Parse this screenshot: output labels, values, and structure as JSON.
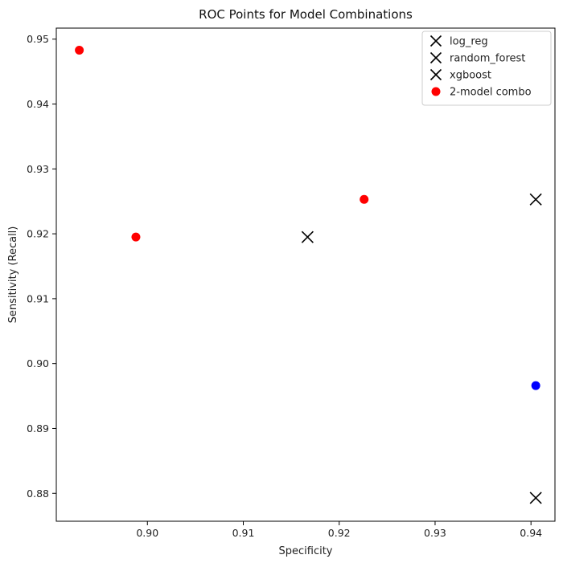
{
  "chart_data": {
    "type": "scatter",
    "title": "ROC Points for Model Combinations",
    "xlabel": "Specificity",
    "ylabel": "Sensitivity (Recall)",
    "xlim": [
      0.8905,
      0.9425
    ],
    "ylim": [
      0.8757,
      0.9517
    ],
    "xticks": [
      0.9,
      0.91,
      0.92,
      0.93,
      0.94
    ],
    "xtick_labels": [
      "0.90",
      "0.91",
      "0.92",
      "0.93",
      "0.94"
    ],
    "yticks": [
      0.88,
      0.89,
      0.9,
      0.91,
      0.92,
      0.93,
      0.94,
      0.95
    ],
    "ytick_labels": [
      "0.88",
      "0.89",
      "0.90",
      "0.91",
      "0.92",
      "0.93",
      "0.94",
      "0.95"
    ],
    "grid": false,
    "legend_position": "top-right",
    "series": [
      {
        "name": "log_reg",
        "marker": "x",
        "color": "#000000",
        "points": [
          {
            "x": 0.9167,
            "y": 0.9195
          }
        ]
      },
      {
        "name": "random_forest",
        "marker": "x",
        "color": "#000000",
        "points": [
          {
            "x": 0.9405,
            "y": 0.9253
          }
        ]
      },
      {
        "name": "xgboost",
        "marker": "x",
        "color": "#000000",
        "points": [
          {
            "x": 0.9405,
            "y": 0.8793
          }
        ]
      },
      {
        "name": "2-model combo",
        "marker": "circle",
        "color": "#ff0000",
        "points": [
          {
            "x": 0.8929,
            "y": 0.9483
          },
          {
            "x": 0.8988,
            "y": 0.9195
          },
          {
            "x": 0.9226,
            "y": 0.9253
          }
        ]
      },
      {
        "name": "",
        "marker": "circle",
        "color": "#0000ff",
        "points": [
          {
            "x": 0.9405,
            "y": 0.8966
          }
        ]
      }
    ]
  }
}
